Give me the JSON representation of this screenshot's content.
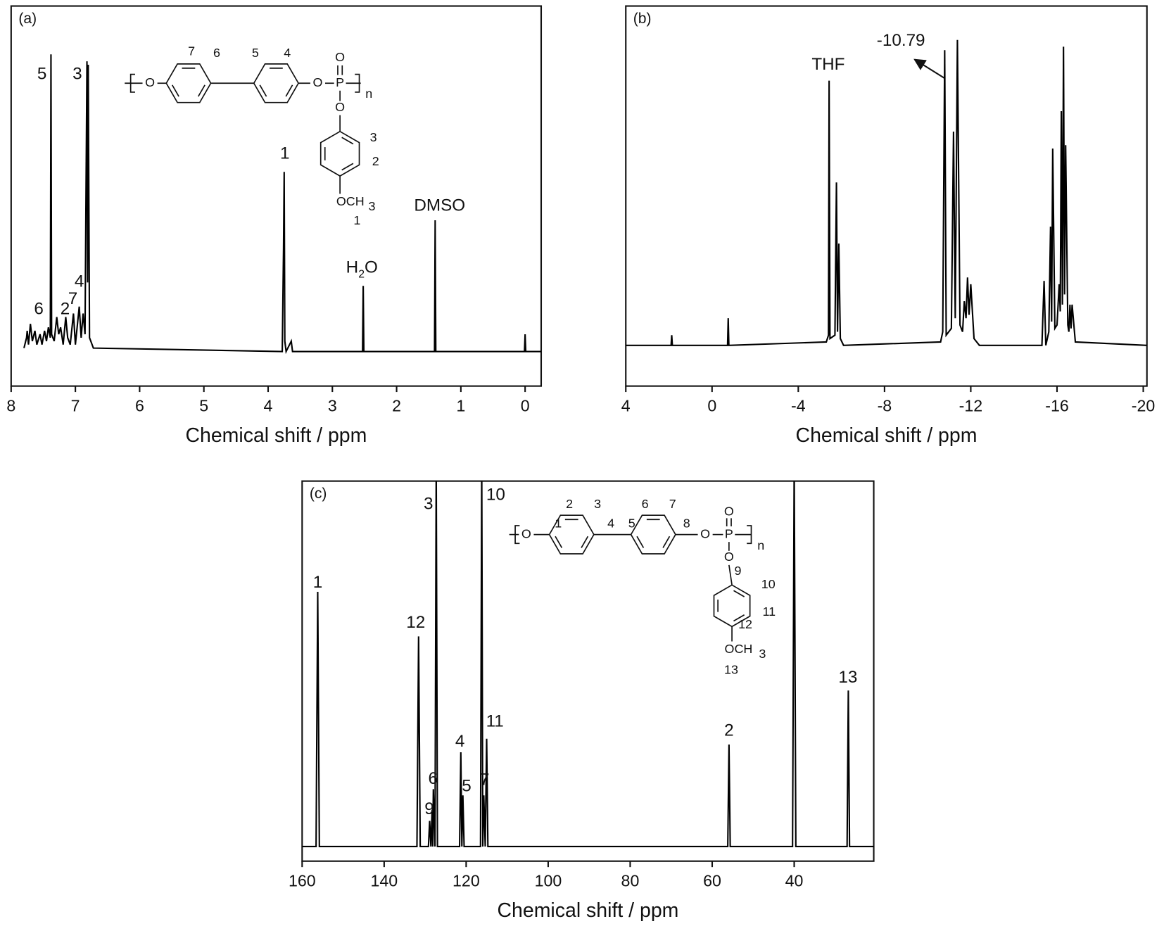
{
  "chart_data": [
    {
      "type": "line",
      "panel_label": "(a)",
      "xlabel": "Chemical shift / ppm",
      "color": "#000000",
      "xlim": [
        8,
        -0.25
      ],
      "xticks": [
        8,
        7,
        6,
        5,
        4,
        3,
        2,
        1,
        0
      ],
      "ylim": [
        -10,
        100
      ],
      "x": [
        7.8,
        7.76,
        7.75,
        7.73,
        7.7,
        7.67,
        7.63,
        7.6,
        7.55,
        7.52,
        7.48,
        7.45,
        7.42,
        7.39,
        7.38,
        7.37,
        7.33,
        7.29,
        7.26,
        7.23,
        7.19,
        7.15,
        7.12,
        7.08,
        7.03,
        7.0,
        6.94,
        6.91,
        6.88,
        6.85,
        6.82,
        6.81,
        6.8,
        6.78,
        6.72,
        3.78,
        3.76,
        3.75,
        3.74,
        3.72,
        3.64,
        3.62,
        2.53,
        2.52,
        2.51,
        1.41,
        1.4,
        1.39,
        0.01,
        0.0,
        -0.01,
        -0.25
      ],
      "values": [
        1,
        4,
        6,
        2,
        8,
        3,
        6,
        2,
        5,
        2,
        6,
        3,
        7,
        4,
        86,
        5,
        3,
        10,
        5,
        7,
        2,
        10,
        4,
        2,
        11,
        2,
        13,
        4,
        11,
        5,
        84,
        20,
        83,
        4,
        1,
        0,
        30,
        52,
        3,
        0,
        3,
        0,
        0,
        19,
        0,
        0,
        38,
        0,
        0,
        5,
        0,
        0
      ],
      "annotations": [
        {
          "parts": [
            "5"
          ],
          "x": 7.52,
          "y": 80
        },
        {
          "parts": [
            "3"
          ],
          "x": 6.97,
          "y": 80
        },
        {
          "parts": [
            "1"
          ],
          "x": 3.74,
          "y": 57
        },
        {
          "parts": [
            "H",
            "2",
            "O"
          ],
          "x": 2.54,
          "y": 24
        },
        {
          "parts": [
            "DMSO"
          ],
          "x": 1.33,
          "y": 42
        },
        {
          "parts": [
            "6"
          ],
          "x": 7.57,
          "y": 12
        },
        {
          "parts": [
            "2"
          ],
          "x": 7.16,
          "y": 12
        },
        {
          "parts": [
            "7"
          ],
          "x": 7.04,
          "y": 15
        },
        {
          "parts": [
            "4"
          ],
          "x": 6.94,
          "y": 20
        }
      ],
      "structure_labels": [
        "O",
        "O",
        "P",
        "O",
        "O",
        "n",
        "7",
        "6",
        "5",
        "4",
        "3",
        "2",
        "OCH",
        "3",
        "1"
      ]
    },
    {
      "type": "line",
      "panel_label": "(b)",
      "xlabel": "Chemical shift / ppm",
      "color": "#000000",
      "xlim": [
        4,
        -20.17
      ],
      "xticks": [
        4,
        0,
        -4,
        -8,
        -12,
        -16,
        -20
      ],
      "ylim": [
        -12,
        100
      ],
      "x": [
        4,
        1.9,
        1.87,
        1.84,
        -0.72,
        -0.75,
        -0.78,
        -5.3,
        -5.4,
        -5.43,
        -5.47,
        -5.7,
        -5.77,
        -5.82,
        -5.88,
        -5.95,
        -6.1,
        -10.6,
        -10.7,
        -10.79,
        -10.86,
        -11.1,
        -11.2,
        -11.28,
        -11.38,
        -11.5,
        -11.62,
        -11.7,
        -11.78,
        -11.85,
        -11.92,
        -12.0,
        -12.15,
        -12.4,
        -15.3,
        -15.4,
        -15.48,
        -15.62,
        -15.7,
        -15.75,
        -15.8,
        -15.9,
        -16.0,
        -16.1,
        -16.15,
        -16.2,
        -16.25,
        -16.3,
        -16.35,
        -16.4,
        -16.5,
        -16.55,
        -16.6,
        -16.65,
        -16.7,
        -16.85,
        -20.17
      ],
      "values": [
        0,
        0,
        3,
        0,
        0,
        8,
        0,
        1,
        3,
        78,
        2,
        3,
        48,
        4,
        30,
        2,
        0,
        1,
        4,
        87,
        3,
        5,
        63,
        8,
        90,
        6,
        4,
        13,
        8,
        20,
        9,
        18,
        2,
        0,
        0,
        19,
        0,
        4,
        35,
        7,
        58,
        5,
        6,
        18,
        10,
        69,
        12,
        88,
        15,
        59,
        6,
        4,
        12,
        5,
        12,
        1,
        0
      ],
      "annotations": [
        {
          "parts": [
            "THF"
          ],
          "x": -5.39,
          "y": 82.5
        },
        {
          "parts": [
            "-10.79"
          ],
          "x": -8.76,
          "y": 89.5
        }
      ]
    },
    {
      "type": "line",
      "panel_label": "(c)",
      "xlabel": "Chemical shift / ppm",
      "color": "#000000",
      "xlim": [
        160,
        20.6
      ],
      "xticks": [
        160,
        140,
        120,
        100,
        80,
        60,
        40
      ],
      "ylim": [
        -4,
        100
      ],
      "x": [
        160,
        156.6,
        156.2,
        155.8,
        132.0,
        131.6,
        131.2,
        129.2,
        128.9,
        128.6,
        128.3,
        128.15,
        128.0,
        127.6,
        127.3,
        127.0,
        121.6,
        121.3,
        121.05,
        120.8,
        120.5,
        116.5,
        116.2,
        115.95,
        115.7,
        115.35,
        115.0,
        114.7,
        56.2,
        55.9,
        55.6,
        40.4,
        40.0,
        39.6,
        27.1,
        26.8,
        26.5,
        20.6
      ],
      "values": [
        0,
        0,
        69.7,
        0,
        0,
        57.5,
        0,
        0,
        7,
        0,
        10,
        0,
        15.7,
        0,
        105,
        0,
        0,
        25.8,
        0,
        14,
        0,
        0,
        105,
        0,
        14,
        0,
        29.5,
        0,
        0,
        27.9,
        0,
        0,
        105,
        0,
        0,
        42.7,
        0,
        0
      ],
      "annotations": [
        {
          "parts": [
            "1"
          ],
          "x": 156.2,
          "y": 72
        },
        {
          "parts": [
            "12"
          ],
          "x": 132.3,
          "y": 61
        },
        {
          "parts": [
            "3"
          ],
          "x": 129.2,
          "y": 93.5
        },
        {
          "parts": [
            "10"
          ],
          "x": 112.8,
          "y": 96
        },
        {
          "parts": [
            "9"
          ],
          "x": 129,
          "y": 10
        },
        {
          "parts": [
            "6"
          ],
          "x": 128.1,
          "y": 18.3
        },
        {
          "parts": [
            "4"
          ],
          "x": 121.5,
          "y": 28.5
        },
        {
          "parts": [
            "5"
          ],
          "x": 119.9,
          "y": 16.3
        },
        {
          "parts": [
            "7"
          ],
          "x": 115.5,
          "y": 18
        },
        {
          "parts": [
            "11"
          ],
          "x": 113,
          "y": 34
        },
        {
          "parts": [
            "2"
          ],
          "x": 55.9,
          "y": 31.5
        },
        {
          "parts": [
            "13"
          ],
          "x": 26.9,
          "y": 46
        }
      ],
      "structure_labels": [
        "O",
        "O",
        "P",
        "O",
        "O",
        "n",
        "1",
        "2",
        "3",
        "4",
        "5",
        "6",
        "7",
        "8",
        "9",
        "10",
        "11",
        "12",
        "OCH",
        "3",
        "13"
      ]
    }
  ]
}
